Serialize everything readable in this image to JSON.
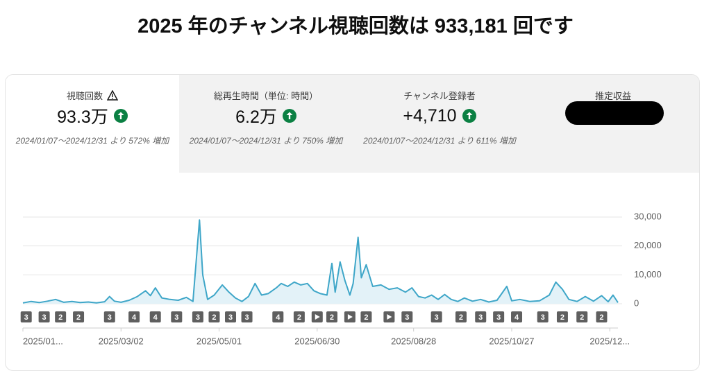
{
  "header": {
    "title": "2025 年のチャンネル視聴回数は 933,181 回です"
  },
  "metrics": [
    {
      "label": "視聴回数",
      "value": "93.3万",
      "change": "2024/01/07～2024/12/31 より 572% 増加"
    },
    {
      "label": "総再生時間（単位: 時間）",
      "value": "6.2万",
      "change": "2024/01/07～2024/12/31 より 750% 増加"
    },
    {
      "label": "チャンネル登録者",
      "value": "+4,710",
      "change": "2024/01/07～2024/12/31 より 611% 増加"
    },
    {
      "label": "推定収益"
    }
  ],
  "chart_data": {
    "type": "line",
    "x": [
      "2025/01/01",
      "2025/01/06",
      "2025/01/11",
      "2025/01/16",
      "2025/01/21",
      "2025/01/26",
      "2025/01/31",
      "2025/02/05",
      "2025/02/10",
      "2025/02/15",
      "2025/02/20",
      "2025/02/23",
      "2025/02/26",
      "2025/03/02",
      "2025/03/07",
      "2025/03/12",
      "2025/03/17",
      "2025/03/20",
      "2025/03/23",
      "2025/03/27",
      "2025/04/01",
      "2025/04/06",
      "2025/04/11",
      "2025/04/15",
      "2025/04/19",
      "2025/04/21",
      "2025/04/24",
      "2025/04/28",
      "2025/05/03",
      "2025/05/07",
      "2025/05/11",
      "2025/05/15",
      "2025/05/19",
      "2025/05/23",
      "2025/05/27",
      "2025/05/31",
      "2025/06/05",
      "2025/06/08",
      "2025/06/12",
      "2025/06/16",
      "2025/06/20",
      "2025/06/24",
      "2025/06/28",
      "2025/07/02",
      "2025/07/06",
      "2025/07/09",
      "2025/07/11",
      "2025/07/14",
      "2025/07/17",
      "2025/07/20",
      "2025/07/22",
      "2025/07/25",
      "2025/07/27",
      "2025/07/30",
      "2025/08/03",
      "2025/08/08",
      "2025/08/13",
      "2025/08/18",
      "2025/08/23",
      "2025/08/27",
      "2025/08/31",
      "2025/09/04",
      "2025/09/08",
      "2025/09/12",
      "2025/09/16",
      "2025/09/20",
      "2025/09/24",
      "2025/09/28",
      "2025/10/03",
      "2025/10/08",
      "2025/10/13",
      "2025/10/18",
      "2025/10/24",
      "2025/10/27",
      "2025/11/01",
      "2025/11/07",
      "2025/11/13",
      "2025/11/19",
      "2025/11/23",
      "2025/11/27",
      "2025/12/01",
      "2025/12/06",
      "2025/12/11",
      "2025/12/16",
      "2025/12/21",
      "2025/12/25",
      "2025/12/28",
      "2025/12/31"
    ],
    "series": [
      {
        "color": "#3ea6c8",
        "fill": "#e3f2f8",
        "values": [
          300,
          800,
          400,
          900,
          1500,
          500,
          800,
          400,
          600,
          300,
          700,
          2500,
          900,
          500,
          1200,
          2500,
          4500,
          2800,
          5500,
          2000,
          1500,
          1200,
          2200,
          800,
          29000,
          10000,
          1500,
          3000,
          6500,
          4000,
          2000,
          800,
          2500,
          7000,
          3000,
          3500,
          5500,
          7000,
          6000,
          7500,
          6500,
          7000,
          4500,
          3500,
          3000,
          14000,
          4000,
          14500,
          8000,
          3000,
          7000,
          23000,
          9000,
          13500,
          6000,
          6500,
          5000,
          5500,
          4000,
          5500,
          2500,
          2000,
          3000,
          1500,
          3200,
          1500,
          800,
          2000,
          900,
          1500,
          600,
          1200,
          6000,
          1000,
          1500,
          800,
          1000,
          3000,
          7500,
          5000,
          1500,
          800,
          2500,
          900,
          2800,
          700,
          3000,
          400
        ]
      }
    ],
    "xlim": [
      "2025/01/01",
      "2025/12/31"
    ],
    "xticks": [
      {
        "value": "2025/01/01",
        "label": "2025/01..."
      },
      "2025/03/02",
      "2025/05/01",
      "2025/06/30",
      "2025/08/28",
      "2025/10/27",
      {
        "value": "2025/12/26",
        "label": "2025/12..."
      }
    ],
    "ylim": [
      0,
      30000
    ],
    "yticks": [
      0,
      {
        "value": 10000,
        "label": "10,000"
      },
      {
        "value": 20000,
        "label": "20,000"
      },
      {
        "value": 30000,
        "label": "30,000"
      }
    ],
    "grid": true,
    "markers": [
      {
        "x": "2025/01/03",
        "label": "3"
      },
      {
        "x": "2025/01/14",
        "label": "3"
      },
      {
        "x": "2025/01/24",
        "label": "2"
      },
      {
        "x": "2025/02/04",
        "label": "2"
      },
      {
        "x": "2025/02/23",
        "label": "3"
      },
      {
        "x": "2025/03/10",
        "label": "4"
      },
      {
        "x": "2025/03/23",
        "label": "4"
      },
      {
        "x": "2025/04/05",
        "label": "3"
      },
      {
        "x": "2025/04/18",
        "label": "3"
      },
      {
        "x": "2025/04/28",
        "label": "2"
      },
      {
        "x": "2025/05/08",
        "label": "3"
      },
      {
        "x": "2025/05/18",
        "label": "3"
      },
      {
        "x": "2025/06/06",
        "label": "4"
      },
      {
        "x": "2025/06/19",
        "label": "2"
      },
      {
        "x": "2025/06/30",
        "icon": "play"
      },
      {
        "x": "2025/07/09",
        "label": "2"
      },
      {
        "x": "2025/07/20",
        "icon": "play"
      },
      {
        "x": "2025/07/30",
        "label": "2"
      },
      {
        "x": "2025/08/13",
        "icon": "play"
      },
      {
        "x": "2025/08/24",
        "label": "3"
      },
      {
        "x": "2025/09/11",
        "label": "3"
      },
      {
        "x": "2025/09/26",
        "label": "2"
      },
      {
        "x": "2025/10/08",
        "label": "3"
      },
      {
        "x": "2025/10/19",
        "label": "3"
      },
      {
        "x": "2025/10/30",
        "label": "4"
      },
      {
        "x": "2025/11/15",
        "label": "3"
      },
      {
        "x": "2025/11/27",
        "label": "2"
      },
      {
        "x": "2025/12/09",
        "label": "2"
      },
      {
        "x": "2025/12/21",
        "label": "2"
      }
    ]
  }
}
